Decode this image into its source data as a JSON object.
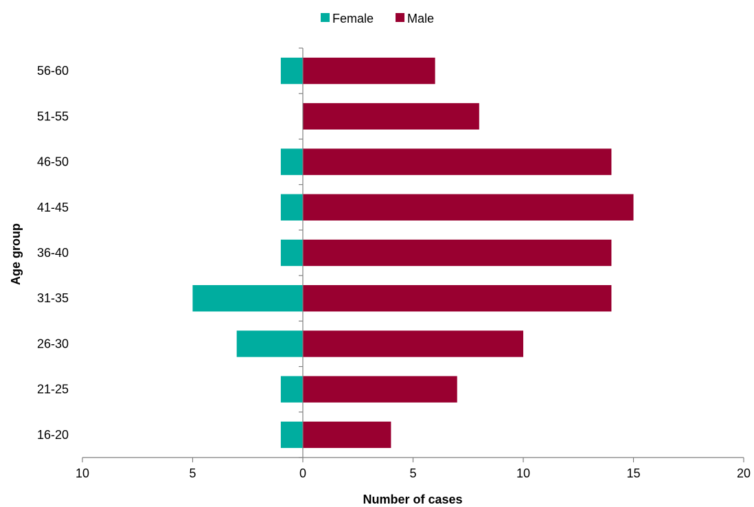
{
  "chart_data": {
    "type": "bar",
    "orientation": "horizontal",
    "layout": "population-pyramid",
    "categories": [
      "16-20",
      "21-25",
      "26-30",
      "31-35",
      "36-40",
      "41-45",
      "46-50",
      "51-55",
      "56-60"
    ],
    "series": [
      {
        "name": "Female",
        "color": "#00ad9f",
        "direction": "left",
        "values": [
          1,
          1,
          3,
          5,
          1,
          1,
          1,
          0,
          1
        ]
      },
      {
        "name": "Male",
        "color": "#990030",
        "direction": "right",
        "values": [
          4,
          7,
          10,
          14,
          14,
          15,
          14,
          8,
          6
        ]
      }
    ],
    "xlabel": "Number of cases",
    "ylabel": "Age group",
    "xlim": [
      -10,
      20
    ],
    "x_ticks": [
      -10,
      -5,
      0,
      5,
      10,
      15,
      20
    ],
    "x_tick_labels": [
      "10",
      "5",
      "0",
      "5",
      "10",
      "15",
      "20"
    ],
    "grid": false,
    "legend": {
      "position": "top-center",
      "entries": [
        "Female",
        "Male"
      ]
    }
  }
}
